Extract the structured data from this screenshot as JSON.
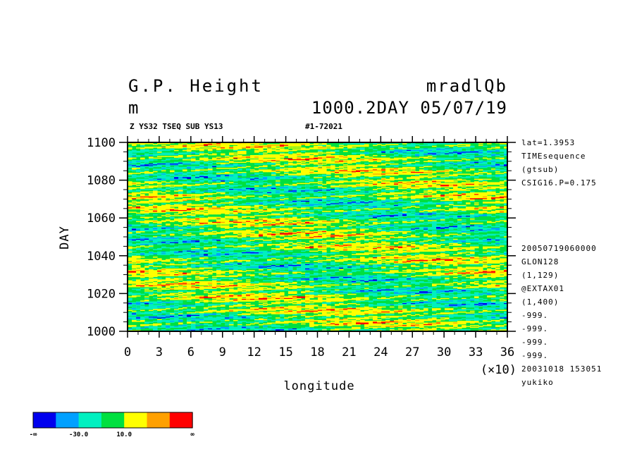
{
  "header": {
    "title_left": "G.P. Height",
    "title_right": "mradlQb",
    "units": "m",
    "info_right": "1000.2DAY 05/07/19",
    "subtitle_left": "Z YS32 TSEQ SUB YS13",
    "subtitle_right": "#1-72021"
  },
  "side_info": {
    "top": [
      "lat=1.3953",
      "TIMEsequence",
      "(gtsub)",
      "CSIG16.P=0.175"
    ],
    "bottom": [
      "20050719060000",
      "GLON128",
      "(1,129)",
      "@EXTAX01",
      "(1,400)",
      "-999.",
      "-999.",
      "-999.",
      "-999.",
      "20031018 153051",
      "yukiko"
    ]
  },
  "chart_data": {
    "type": "heatmap",
    "xlabel": "longitude",
    "x_multiplier_label": "(×10)",
    "ylabel": "DAY",
    "xlim": [
      0,
      36
    ],
    "ylim": [
      1000,
      1100
    ],
    "x_ticks": [
      0,
      3,
      6,
      9,
      12,
      15,
      18,
      21,
      24,
      27,
      30,
      33,
      36
    ],
    "x_tick_labels": [
      "0",
      "3",
      "6",
      "9",
      "12",
      "15",
      "18",
      "21",
      "24",
      "27",
      "30",
      "33",
      "36"
    ],
    "y_ticks": [
      1000,
      1020,
      1040,
      1060,
      1080,
      1100
    ],
    "y_tick_labels": [
      "1000",
      "1020",
      "1040",
      "1060",
      "1080",
      "1100"
    ],
    "colorbar": {
      "colors": [
        "#0000ee",
        "#00a0ff",
        "#00f0c0",
        "#00e040",
        "#ffff00",
        "#ffa000",
        "#ff0000"
      ],
      "labels": [
        "-∞",
        "-30.0",
        "10.0",
        "∞"
      ]
    }
  }
}
